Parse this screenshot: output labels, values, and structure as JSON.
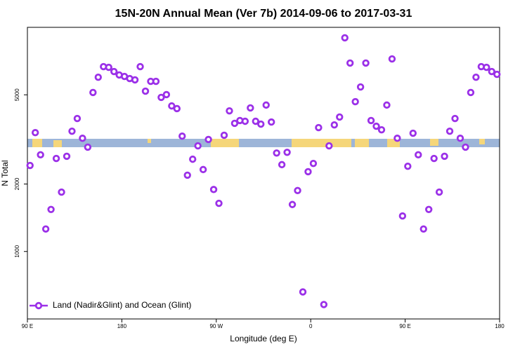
{
  "chart_data": {
    "type": "scatter",
    "title": "15N-20N Annual Mean (Ver 7b)   2014-09-06 to 2017-03-31",
    "xlabel": "Longitude (deg E)",
    "ylabel": "N Total",
    "x": [
      92.5,
      97.5,
      102.5,
      107.5,
      112.5,
      117.5,
      122.5,
      127.5,
      132.5,
      137.5,
      142.5,
      147.5,
      152.5,
      157.5,
      162.5,
      167.5,
      172.5,
      177.5,
      182.5,
      187.5,
      192.5,
      197.5,
      202.5,
      207.5,
      212.5,
      217.5,
      222.5,
      227.5,
      232.5,
      237.5,
      242.5,
      247.5,
      252.5,
      257.5,
      262.5,
      267.5,
      272.5,
      277.5,
      282.5,
      287.5,
      292.5,
      297.5,
      302.5,
      307.5,
      312.5,
      317.5,
      322.5,
      327.5,
      332.5,
      337.5,
      342.5,
      347.5,
      352.5,
      357.5,
      362.5,
      367.5,
      372.5,
      377.5,
      382.5,
      387.5,
      392.5,
      397.5,
      402.5,
      407.5,
      412.5,
      417.5,
      422.5,
      427.5,
      432.5,
      437.5,
      442.5,
      447.5,
      452.5,
      457.5,
      462.5,
      467.5,
      472.5,
      477.5,
      482.5,
      487.5,
      492.5,
      497.5,
      502.5,
      507.5,
      512.5,
      517.5,
      522.5,
      527.5,
      532.5,
      537.5
    ],
    "series": [
      {
        "name": "Land (Nadir&Glint) and Ocean (Glint)",
        "color": "#9b30e8",
        "values": [
          2420,
          3390,
          2700,
          1260,
          1540,
          2600,
          1840,
          2660,
          3440,
          3920,
          3200,
          2920,
          5120,
          5990,
          6680,
          6630,
          6350,
          6130,
          6040,
          5910,
          5830,
          6680,
          5190,
          5740,
          5740,
          4870,
          5010,
          4460,
          4340,
          3270,
          2190,
          2580,
          2960,
          2320,
          3160,
          1890,
          1640,
          3300,
          4240,
          3730,
          3840,
          3810,
          4370,
          3810,
          3700,
          4500,
          3780,
          2750,
          2440,
          2770,
          1620,
          1870,
          660,
          2270,
          2470,
          3570,
          580,
          2960,
          3670,
          3980,
          8980,
          6930,
          4660,
          5420,
          6930,
          3840,
          3620,
          3490,
          4500,
          7230,
          3200,
          1440,
          2400,
          3370,
          2700,
          1260,
          1540,
          2600,
          1840,
          2660,
          3440,
          3920,
          3200,
          2920,
          5120,
          5990,
          6680,
          6630,
          6350,
          6170
        ]
      }
    ],
    "xlim": [
      90,
      540
    ],
    "xticks": [
      {
        "value": 90,
        "label": "90 E"
      },
      180,
      {
        "value": 270,
        "label": "90 W"
      },
      {
        "value": 360,
        "label": "0"
      },
      {
        "value": 450,
        "label": "90 E"
      },
      180.0001
    ],
    "ylim": [
      500,
      10000
    ],
    "yticks": [
      1000,
      2000,
      5000
    ],
    "ylog": true,
    "legend": "lower left"
  }
}
